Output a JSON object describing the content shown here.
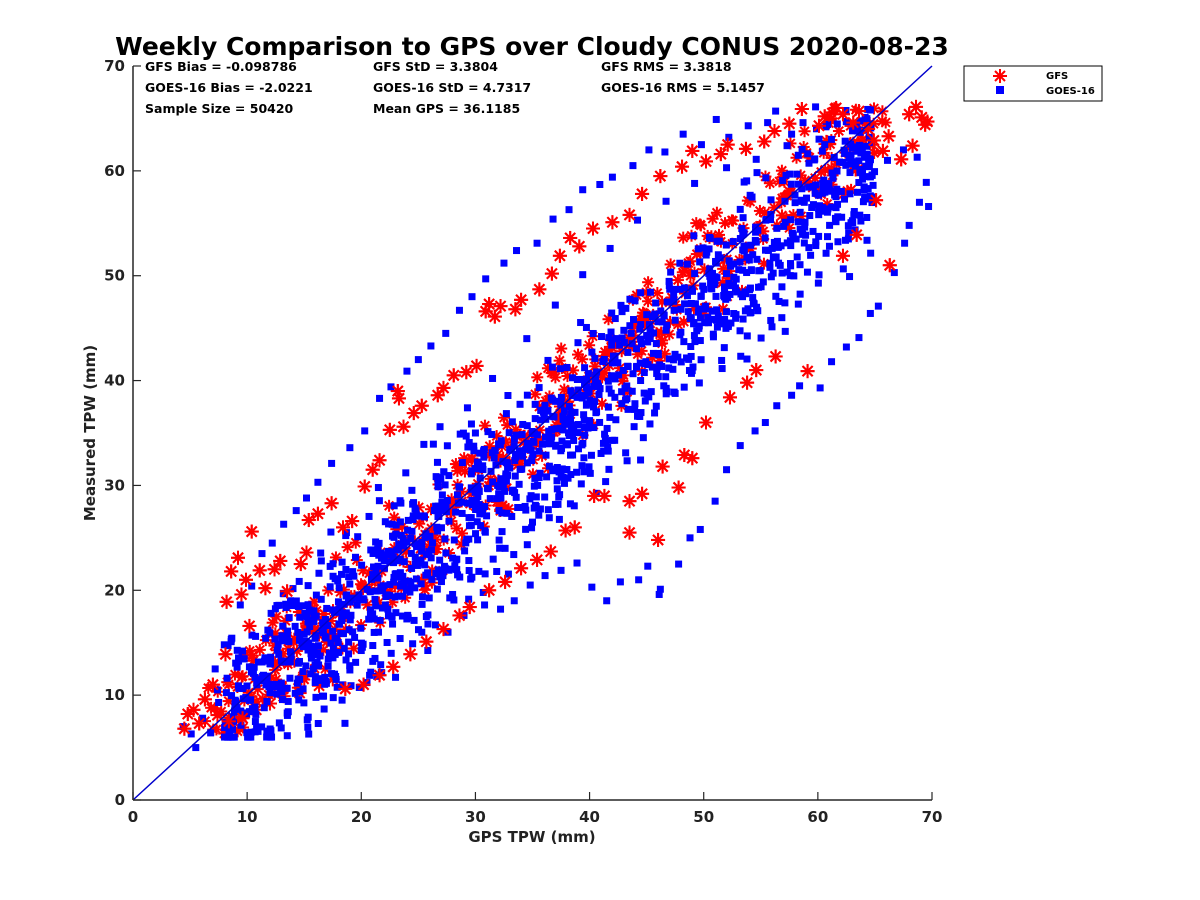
{
  "chart_data": {
    "type": "scatter",
    "title": "Weekly Comparison to GPS over Cloudy CONUS 2020-08-23",
    "xlabel": "GPS TPW (mm)",
    "ylabel": "Measured TPW (mm)",
    "xlim": [
      0,
      70
    ],
    "ylim": [
      0,
      70
    ],
    "xticks": [
      "0",
      "10",
      "20",
      "30",
      "40",
      "50",
      "60",
      "70"
    ],
    "yticks": [
      "0",
      "10",
      "20",
      "30",
      "40",
      "50",
      "60",
      "70"
    ],
    "grid": false,
    "legend_position": "top-right, outside plot",
    "reference_line": {
      "x": [
        0,
        70
      ],
      "y": [
        0,
        70
      ],
      "color": "#0000CC"
    },
    "stats": [
      [
        "GFS Bias = -0.098786",
        "GFS StD = 3.3804",
        "GFS RMS = 3.3818"
      ],
      [
        "GOES-16 Bias = -2.0221",
        "GOES-16 StD = 4.7317",
        "GOES-16 RMS = 5.1457"
      ],
      [
        "Sample Size = 50420",
        "Mean GPS = 36.1185",
        ""
      ]
    ],
    "series": [
      {
        "name": "GFS",
        "marker": "asterisk",
        "color": "#FF0000",
        "points": [
          [
            4.5,
            6.8
          ],
          [
            4.8,
            8.2
          ],
          [
            5.3,
            8.6
          ],
          [
            5.8,
            7.3
          ],
          [
            6.3,
            9.6
          ],
          [
            7.0,
            11.0
          ],
          [
            7.4,
            8.1
          ],
          [
            8.1,
            13.9
          ],
          [
            8.2,
            18.9
          ],
          [
            8.6,
            21.8
          ],
          [
            9.2,
            23.1
          ],
          [
            9.5,
            19.6
          ],
          [
            9.9,
            21.0
          ],
          [
            10.2,
            16.6
          ],
          [
            10.4,
            25.6
          ],
          [
            11.1,
            21.9
          ],
          [
            11.6,
            20.2
          ],
          [
            12.4,
            22.0
          ],
          [
            12.9,
            22.8
          ],
          [
            13.5,
            19.9
          ],
          [
            14.7,
            22.5
          ],
          [
            15.2,
            23.6
          ],
          [
            15.4,
            26.7
          ],
          [
            16.2,
            27.3
          ],
          [
            17.4,
            28.3
          ],
          [
            18.4,
            26.0
          ],
          [
            19.2,
            26.6
          ],
          [
            20.3,
            29.9
          ],
          [
            21.0,
            31.5
          ],
          [
            21.6,
            32.4
          ],
          [
            22.5,
            35.3
          ],
          [
            23.2,
            39.0
          ],
          [
            23.3,
            38.3
          ],
          [
            23.7,
            35.6
          ],
          [
            24.6,
            36.9
          ],
          [
            25.3,
            37.6
          ],
          [
            26.7,
            38.6
          ],
          [
            27.2,
            39.3
          ],
          [
            28.1,
            40.5
          ],
          [
            29.2,
            40.8
          ],
          [
            30.1,
            41.4
          ],
          [
            30.9,
            46.6
          ],
          [
            31.2,
            47.3
          ],
          [
            31.7,
            46.1
          ],
          [
            32.2,
            47.1
          ],
          [
            33.5,
            46.8
          ],
          [
            34.0,
            47.7
          ],
          [
            35.6,
            48.7
          ],
          [
            36.7,
            50.2
          ],
          [
            37.4,
            51.9
          ],
          [
            38.3,
            53.6
          ],
          [
            39.1,
            52.8
          ],
          [
            40.3,
            54.5
          ],
          [
            42.0,
            55.1
          ],
          [
            43.5,
            55.8
          ],
          [
            44.6,
            57.8
          ],
          [
            46.2,
            59.5
          ],
          [
            48.1,
            60.4
          ],
          [
            49.0,
            61.9
          ],
          [
            50.2,
            60.9
          ],
          [
            51.5,
            61.6
          ],
          [
            52.1,
            62.5
          ],
          [
            53.7,
            62.1
          ],
          [
            55.3,
            62.8
          ],
          [
            56.2,
            63.8
          ],
          [
            57.5,
            64.5
          ],
          [
            58.6,
            65.9
          ],
          [
            60.1,
            64.3
          ],
          [
            60.6,
            65.2
          ],
          [
            61.6,
            66.0
          ],
          [
            62.2,
            65.4
          ],
          [
            63.1,
            64.6
          ],
          [
            63.6,
            65.7
          ],
          [
            64.4,
            64.0
          ],
          [
            64.9,
            62.9
          ],
          [
            65.7,
            61.9
          ],
          [
            66.2,
            63.3
          ],
          [
            67.3,
            61.1
          ],
          [
            68.0,
            65.4
          ],
          [
            68.6,
            66.1
          ],
          [
            68.3,
            62.4
          ],
          [
            69.1,
            65.1
          ],
          [
            69.6,
            64.7
          ],
          [
            69.4,
            64.4
          ],
          [
            65.1,
            57.2
          ],
          [
            66.3,
            51.0
          ],
          [
            63.4,
            53.9
          ],
          [
            62.2,
            51.9
          ],
          [
            59.1,
            40.9
          ],
          [
            56.3,
            42.3
          ],
          [
            54.6,
            41.0
          ],
          [
            53.8,
            39.8
          ],
          [
            52.3,
            38.4
          ],
          [
            50.2,
            36.0
          ],
          [
            49.0,
            32.6
          ],
          [
            48.3,
            32.9
          ],
          [
            47.8,
            29.8
          ],
          [
            46.4,
            31.8
          ],
          [
            46.0,
            24.8
          ],
          [
            44.6,
            29.2
          ],
          [
            43.5,
            28.5
          ],
          [
            43.5,
            25.5
          ],
          [
            41.3,
            29.0
          ],
          [
            40.4,
            29.0
          ],
          [
            38.7,
            26.0
          ],
          [
            37.9,
            25.7
          ],
          [
            36.6,
            23.7
          ],
          [
            35.4,
            22.9
          ],
          [
            34.0,
            22.1
          ],
          [
            32.6,
            20.8
          ],
          [
            31.2,
            20.0
          ],
          [
            29.5,
            18.4
          ],
          [
            28.6,
            17.6
          ],
          [
            27.2,
            16.3
          ],
          [
            25.7,
            15.1
          ],
          [
            24.3,
            13.9
          ],
          [
            22.8,
            12.7
          ],
          [
            21.6,
            11.9
          ],
          [
            20.2,
            11.0
          ],
          [
            18.6,
            10.6
          ],
          [
            17.5,
            11.5
          ],
          [
            16.3,
            10.9
          ],
          [
            14.6,
            10.2
          ],
          [
            13.2,
            9.9
          ],
          [
            12.0,
            9.2
          ],
          [
            10.8,
            8.6
          ],
          [
            9.6,
            7.8
          ],
          [
            8.4,
            7.5
          ]
        ]
      },
      {
        "name": "GOES-16",
        "marker": "square",
        "color": "#0000FF",
        "points": [
          [
            4.4,
            7.0
          ],
          [
            5.1,
            6.3
          ],
          [
            5.5,
            5.0
          ],
          [
            6.1,
            7.8
          ],
          [
            6.8,
            6.4
          ],
          [
            7.5,
            9.3
          ],
          [
            8.3,
            7.1
          ],
          [
            9.0,
            9.4
          ],
          [
            10.2,
            12.7
          ],
          [
            10.7,
            6.5
          ],
          [
            11.5,
            8.8
          ],
          [
            12.6,
            10.1
          ],
          [
            13.6,
            9.4
          ],
          [
            14.9,
            10.6
          ],
          [
            15.8,
            12.5
          ],
          [
            16.6,
            9.9
          ],
          [
            17.8,
            11.5
          ],
          [
            19.1,
            10.9
          ],
          [
            20.5,
            11.2
          ],
          [
            21.7,
            12.9
          ],
          [
            23.0,
            11.7
          ],
          [
            24.5,
            14.9
          ],
          [
            25.3,
            16.0
          ],
          [
            26.5,
            16.7
          ],
          [
            27.6,
            16.0
          ],
          [
            29.0,
            17.6
          ],
          [
            30.8,
            18.6
          ],
          [
            32.2,
            18.2
          ],
          [
            33.4,
            19.0
          ],
          [
            34.8,
            20.5
          ],
          [
            36.1,
            21.4
          ],
          [
            37.5,
            21.9
          ],
          [
            38.9,
            22.6
          ],
          [
            40.2,
            20.3
          ],
          [
            41.5,
            19.0
          ],
          [
            42.7,
            20.8
          ],
          [
            44.3,
            21.0
          ],
          [
            45.1,
            22.3
          ],
          [
            46.2,
            20.1
          ],
          [
            46.1,
            19.6
          ],
          [
            47.8,
            22.5
          ],
          [
            48.8,
            25.0
          ],
          [
            49.7,
            25.8
          ],
          [
            51.0,
            28.5
          ],
          [
            52.0,
            31.5
          ],
          [
            53.2,
            33.8
          ],
          [
            54.5,
            35.2
          ],
          [
            55.4,
            36.0
          ],
          [
            56.4,
            37.6
          ],
          [
            57.7,
            38.6
          ],
          [
            58.4,
            39.5
          ],
          [
            60.2,
            39.3
          ],
          [
            61.2,
            41.8
          ],
          [
            62.5,
            43.2
          ],
          [
            63.6,
            44.1
          ],
          [
            64.6,
            46.4
          ],
          [
            65.3,
            47.1
          ],
          [
            66.7,
            50.3
          ],
          [
            67.6,
            53.1
          ],
          [
            68.0,
            54.8
          ],
          [
            68.9,
            57.0
          ],
          [
            69.7,
            56.6
          ],
          [
            69.5,
            58.9
          ],
          [
            68.7,
            61.3
          ],
          [
            67.5,
            62.0
          ],
          [
            66.1,
            61.0
          ],
          [
            64.7,
            62.7
          ],
          [
            63.5,
            63.8
          ],
          [
            62.5,
            64.7
          ],
          [
            60.6,
            62.5
          ],
          [
            59.8,
            66.1
          ],
          [
            58.7,
            64.6
          ],
          [
            57.7,
            63.5
          ],
          [
            56.3,
            65.7
          ],
          [
            55.6,
            64.6
          ],
          [
            53.9,
            64.3
          ],
          [
            52.2,
            63.2
          ],
          [
            51.1,
            64.9
          ],
          [
            49.8,
            62.5
          ],
          [
            48.2,
            63.5
          ],
          [
            46.6,
            61.8
          ],
          [
            45.2,
            62.0
          ],
          [
            43.8,
            60.5
          ],
          [
            42.0,
            59.4
          ],
          [
            40.9,
            58.7
          ],
          [
            39.4,
            58.2
          ],
          [
            38.2,
            56.3
          ],
          [
            36.8,
            55.4
          ],
          [
            35.4,
            53.1
          ],
          [
            33.6,
            52.4
          ],
          [
            32.5,
            51.2
          ],
          [
            30.9,
            49.7
          ],
          [
            29.7,
            48.0
          ],
          [
            28.6,
            46.7
          ],
          [
            27.4,
            44.5
          ],
          [
            26.1,
            43.3
          ],
          [
            25.0,
            42.0
          ],
          [
            24.0,
            40.9
          ],
          [
            22.6,
            39.4
          ],
          [
            21.6,
            38.3
          ],
          [
            20.3,
            35.2
          ],
          [
            19.0,
            33.6
          ],
          [
            17.4,
            32.1
          ],
          [
            16.2,
            30.3
          ],
          [
            15.2,
            28.8
          ],
          [
            14.3,
            27.6
          ],
          [
            13.2,
            26.3
          ],
          [
            12.2,
            24.5
          ],
          [
            11.3,
            23.5
          ],
          [
            10.4,
            20.4
          ],
          [
            9.4,
            18.6
          ],
          [
            8.6,
            15.1
          ],
          [
            8.0,
            14.8
          ],
          [
            7.2,
            12.5
          ],
          [
            7.4,
            10.5
          ],
          [
            9.6,
            14.2
          ],
          [
            12.1,
            17.8
          ],
          [
            13.8,
            19.0
          ],
          [
            16.5,
            22.8
          ],
          [
            18.7,
            25.5
          ],
          [
            21.5,
            29.8
          ],
          [
            23.9,
            31.2
          ],
          [
            26.9,
            35.6
          ],
          [
            29.3,
            37.4
          ],
          [
            31.5,
            40.2
          ],
          [
            34.5,
            44.0
          ],
          [
            37.0,
            47.2
          ],
          [
            39.4,
            50.1
          ],
          [
            41.8,
            52.6
          ],
          [
            44.2,
            55.3
          ],
          [
            46.7,
            57.1
          ],
          [
            49.2,
            58.8
          ],
          [
            52.0,
            60.3
          ],
          [
            54.6,
            61.1
          ],
          [
            57.3,
            62.4
          ],
          [
            60.7,
            64.2
          ],
          [
            62.2,
            60.8
          ],
          [
            60.4,
            56.5
          ],
          [
            58.1,
            53.5
          ],
          [
            55.8,
            50.8
          ],
          [
            53.4,
            48.0
          ],
          [
            51.2,
            45.1
          ],
          [
            48.9,
            42.3
          ],
          [
            46.5,
            39.5
          ],
          [
            44.2,
            36.6
          ],
          [
            42.0,
            34.3
          ],
          [
            39.5,
            31.3
          ],
          [
            37.3,
            28.9
          ],
          [
            35.0,
            26.5
          ],
          [
            32.6,
            24.0
          ],
          [
            30.3,
            21.8
          ],
          [
            28.0,
            19.6
          ],
          [
            25.7,
            17.5
          ],
          [
            23.4,
            15.4
          ],
          [
            21.2,
            13.5
          ],
          [
            19.0,
            12.4
          ],
          [
            16.8,
            11.7
          ],
          [
            14.6,
            11.5
          ],
          [
            12.4,
            10.8
          ],
          [
            10.2,
            9.5
          ],
          [
            30.0,
            35.0
          ],
          [
            33.0,
            33.4
          ],
          [
            36.0,
            37.2
          ],
          [
            39.0,
            39.1
          ],
          [
            42.0,
            41.7
          ],
          [
            45.0,
            44.3
          ],
          [
            48.0,
            46.8
          ],
          [
            51.0,
            49.9
          ],
          [
            27.0,
            27.7
          ],
          [
            24.0,
            24.6
          ],
          [
            21.0,
            21.5
          ],
          [
            18.0,
            18.9
          ],
          [
            15.0,
            15.8
          ],
          [
            12.0,
            13.0
          ],
          [
            54.0,
            51.5
          ],
          [
            57.0,
            54.7
          ]
        ]
      }
    ]
  }
}
